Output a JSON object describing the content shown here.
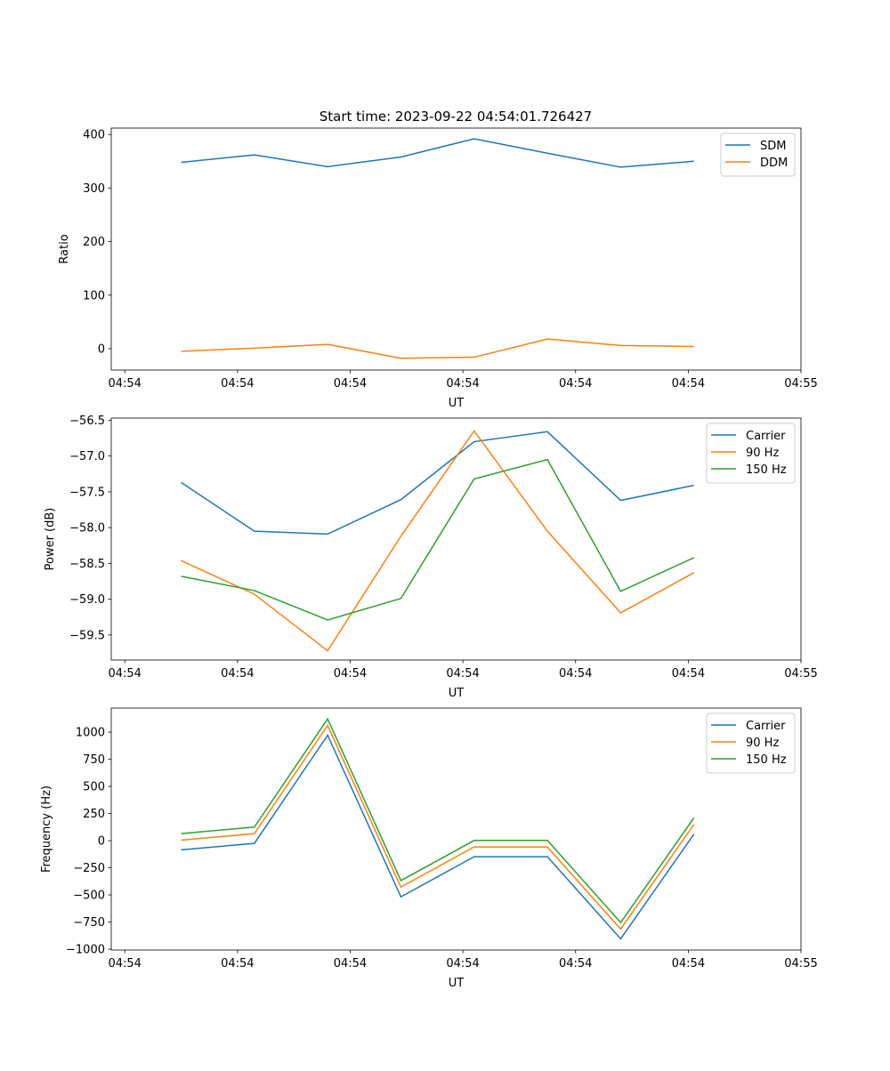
{
  "title": "Start time: 2023-09-22 04:54:01.726427",
  "colors": {
    "c0": "#1f77b4",
    "c1": "#ff7f0e",
    "c2": "#2ca02c"
  },
  "chart_data": [
    {
      "type": "line",
      "title": "Start time: 2023-09-22 04:54:01.726427",
      "xlabel": "UT",
      "ylabel": "Ratio",
      "x_seconds_after_04_54_00": [
        5.0,
        11.5,
        18.0,
        24.5,
        31.0,
        37.5,
        44.0,
        50.5
      ],
      "xlim": [
        -1.2,
        60
      ],
      "xticks": [
        0,
        10,
        20,
        30,
        40,
        50,
        60
      ],
      "xtick_labels": [
        "04:54",
        "04:54",
        "04:54",
        "04:54",
        "04:54",
        "04:54",
        "04:55"
      ],
      "ylim": [
        -40,
        412
      ],
      "yticks": [
        0,
        100,
        200,
        300,
        400
      ],
      "ytick_labels": [
        "0",
        "100",
        "200",
        "300",
        "400"
      ],
      "legend": "top-right",
      "series": [
        {
          "name": "SDM",
          "color": "#1f77b4",
          "values": [
            348,
            362,
            340,
            358,
            392,
            365,
            339,
            350
          ]
        },
        {
          "name": "DDM",
          "color": "#ff7f0e",
          "values": [
            -5,
            1,
            8,
            -18,
            -16,
            18,
            6,
            4
          ]
        }
      ]
    },
    {
      "type": "line",
      "xlabel": "UT",
      "ylabel": "Power (dB)",
      "x_seconds_after_04_54_00": [
        5.0,
        11.5,
        18.0,
        24.5,
        31.0,
        37.5,
        44.0,
        50.5
      ],
      "xlim": [
        -1.2,
        60
      ],
      "xticks": [
        0,
        10,
        20,
        30,
        40,
        50,
        60
      ],
      "xtick_labels": [
        "04:54",
        "04:54",
        "04:54",
        "04:54",
        "04:54",
        "04:54",
        "04:55"
      ],
      "ylim": [
        -59.85,
        -56.47
      ],
      "yticks": [
        -59.5,
        -59.0,
        -58.5,
        -58.0,
        -57.5,
        -57.0,
        -56.5
      ],
      "ytick_labels": [
        "−59.5",
        "−59.0",
        "−58.5",
        "−58.0",
        "−57.5",
        "−57.0",
        "−56.5"
      ],
      "legend": "top-right",
      "series": [
        {
          "name": "Carrier",
          "color": "#1f77b4",
          "values": [
            -57.37,
            -58.05,
            -58.09,
            -57.61,
            -56.8,
            -56.66,
            -57.62,
            -57.41
          ]
        },
        {
          "name": "90 Hz",
          "color": "#ff7f0e",
          "values": [
            -58.46,
            -58.93,
            -59.72,
            -58.12,
            -56.65,
            -58.05,
            -59.19,
            -58.63
          ]
        },
        {
          "name": "150 Hz",
          "color": "#2ca02c",
          "values": [
            -58.68,
            -58.88,
            -59.29,
            -58.99,
            -57.32,
            -57.05,
            -58.89,
            -58.42
          ]
        }
      ]
    },
    {
      "type": "line",
      "xlabel": "UT",
      "ylabel": "Frequency (Hz)",
      "x_seconds_after_04_54_00": [
        5.0,
        11.5,
        18.0,
        24.5,
        31.0,
        37.5,
        44.0,
        50.5
      ],
      "xlim": [
        -1.2,
        60
      ],
      "xticks": [
        0,
        10,
        20,
        30,
        40,
        50,
        60
      ],
      "xtick_labels": [
        "04:54",
        "04:54",
        "04:54",
        "04:54",
        "04:54",
        "04:54",
        "04:55"
      ],
      "ylim": [
        -1008,
        1222
      ],
      "yticks": [
        -1000,
        -750,
        -500,
        -250,
        0,
        250,
        500,
        750,
        1000
      ],
      "ytick_labels": [
        "−1000",
        "−750",
        "−500",
        "−250",
        "0",
        "250",
        "500",
        "750",
        "1000"
      ],
      "legend": "top-right",
      "series": [
        {
          "name": "Carrier",
          "color": "#1f77b4",
          "values": [
            -85,
            -25,
            972,
            -518,
            -148,
            -148,
            -905,
            60
          ]
        },
        {
          "name": "90 Hz",
          "color": "#ff7f0e",
          "values": [
            5,
            65,
            1062,
            -428,
            -58,
            -58,
            -815,
            150
          ]
        },
        {
          "name": "150 Hz",
          "color": "#2ca02c",
          "values": [
            65,
            125,
            1122,
            -368,
            2,
            2,
            -755,
            210
          ]
        }
      ]
    }
  ]
}
